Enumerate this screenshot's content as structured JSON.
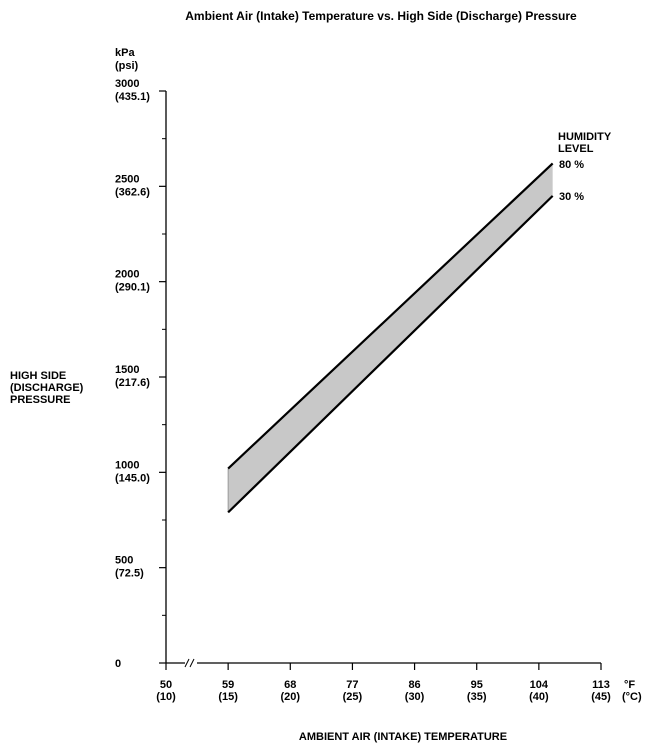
{
  "chart_data": {
    "type": "area",
    "title": "Ambient Air (Intake) Temperature vs. High Side (Discharge) Pressure",
    "xlabel": "AMBIENT AIR (INTAKE) TEMPERATURE",
    "ylabel_lines": [
      "HIGH SIDE",
      "(DISCHARGE)",
      "PRESSURE"
    ],
    "y_unit_lines": [
      "kPa",
      "(psi)"
    ],
    "x_unit_lines": [
      "°F",
      "(°C)"
    ],
    "xlim": [
      50,
      113
    ],
    "ylim": [
      0,
      3000
    ],
    "x_axis_break": true,
    "x_ticks": [
      {
        "value": 50,
        "f": "50",
        "c": "(10)"
      },
      {
        "value": 59,
        "f": "59",
        "c": "(15)"
      },
      {
        "value": 68,
        "f": "68",
        "c": "(20)"
      },
      {
        "value": 77,
        "f": "77",
        "c": "(25)"
      },
      {
        "value": 86,
        "f": "86",
        "c": "(30)"
      },
      {
        "value": 95,
        "f": "95",
        "c": "(35)"
      },
      {
        "value": 104,
        "f": "104",
        "c": "(40)"
      },
      {
        "value": 113,
        "f": "113",
        "c": "(45)"
      }
    ],
    "y_ticks": [
      {
        "value": 0,
        "kpa": "0",
        "psi": ""
      },
      {
        "value": 500,
        "kpa": "500",
        "psi": "(72.5)"
      },
      {
        "value": 1000,
        "kpa": "1000",
        "psi": "(145.0)"
      },
      {
        "value": 1500,
        "kpa": "1500",
        "psi": "(217.6)"
      },
      {
        "value": 2000,
        "kpa": "2000",
        "psi": "(290.1)"
      },
      {
        "value": 2500,
        "kpa": "2500",
        "psi": "(362.6)"
      },
      {
        "value": 3000,
        "kpa": "3000",
        "psi": "(435.1)"
      }
    ],
    "y_minor_ticks": [
      250,
      750,
      1250,
      1750,
      2250,
      2750
    ],
    "legend_title_lines": [
      "HUMIDITY",
      "LEVEL"
    ],
    "series": [
      {
        "name": "80 %",
        "x": [
          59,
          106
        ],
        "y": [
          1020,
          2620
        ]
      },
      {
        "name": "30 %",
        "x": [
          59,
          106
        ],
        "y": [
          790,
          2450
        ]
      }
    ],
    "band_color": "#c8c8c8",
    "line_color": "#000000"
  }
}
